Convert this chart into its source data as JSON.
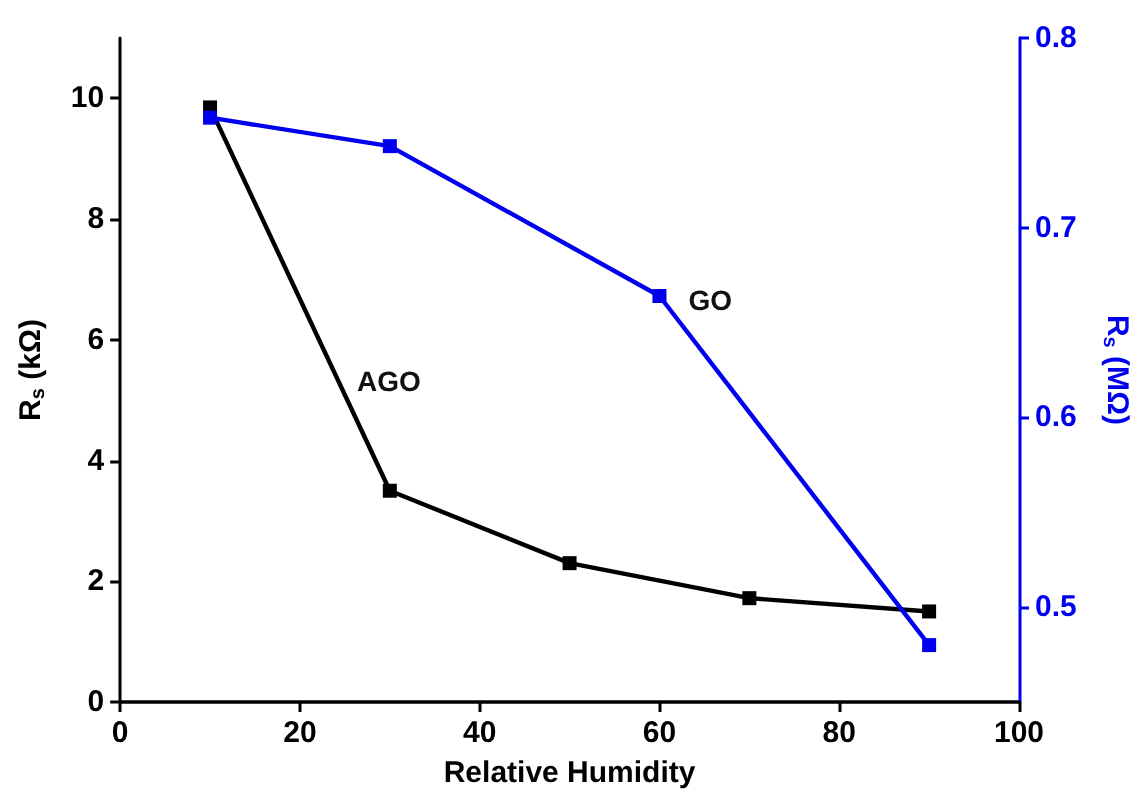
{
  "chart_data": {
    "type": "line",
    "xlabel": "Relative Humidity",
    "ylabel": "R$_{s}$ (kΩ)",
    "y2label": "R$_{s}$ (MΩ)",
    "xlim": [
      0,
      100
    ],
    "xticks": [
      0,
      20,
      40,
      60,
      80,
      100
    ],
    "ylim": [
      0,
      11
    ],
    "yticks": [
      0,
      2,
      4,
      6,
      8,
      10
    ],
    "y2lim": [
      0.45,
      0.8
    ],
    "y2ticks": [
      0.5,
      0.6,
      0.7,
      0.8
    ],
    "marker": "square",
    "line_style": "solid",
    "grid": false,
    "legend": false,
    "series": [
      {
        "name": "AGO",
        "color": "#000000",
        "x": [
          10,
          30,
          50,
          70,
          90
        ],
        "values": [
          9.85,
          3.5,
          2.3,
          1.72,
          1.5
        ]
      },
      {
        "name": "GO",
        "color": "#0000ee",
        "axis": "y2",
        "x": [
          10,
          30,
          60,
          90
        ],
        "values": [
          0.758,
          0.743,
          0.664,
          0.48
        ]
      }
    ]
  }
}
